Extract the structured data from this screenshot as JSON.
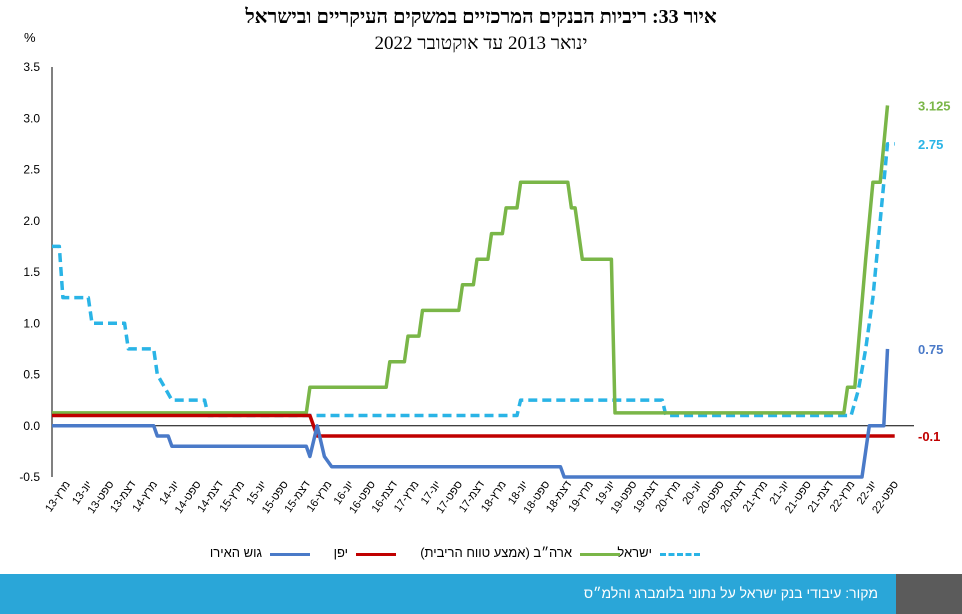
{
  "header": {
    "title": "איור 33: ריביות הבנקים המרכזיים במשקים העיקריים ובישראל",
    "subtitle": "ינואר 2013 עד אוקטובר 2022"
  },
  "footer": {
    "source": "מקור: עיבודי בנק ישראל על נתוני בלומברג והלמ״ס"
  },
  "chart_data": {
    "type": "line",
    "unit_label": "%",
    "ylim": [
      -0.5,
      3.5
    ],
    "yticks": [
      "3.5",
      "3.0",
      "2.5",
      "2.0",
      "1.5",
      "1.0",
      "0.5",
      "0.0",
      "-0.5"
    ],
    "x_range": [
      0,
      117
    ],
    "x_ticks": [
      {
        "label": "מרץ-13",
        "m": 2
      },
      {
        "label": "יונ-13",
        "m": 5
      },
      {
        "label": "ספט-13",
        "m": 8
      },
      {
        "label": "דצמ-13",
        "m": 11
      },
      {
        "label": "מרץ-14",
        "m": 14
      },
      {
        "label": "יונ-14",
        "m": 17
      },
      {
        "label": "ספט-14",
        "m": 20
      },
      {
        "label": "דצמ-14",
        "m": 23
      },
      {
        "label": "מרץ-15",
        "m": 26
      },
      {
        "label": "יונ-15",
        "m": 29
      },
      {
        "label": "ספט-15",
        "m": 32
      },
      {
        "label": "דצמ-15",
        "m": 35
      },
      {
        "label": "מרץ-16",
        "m": 38
      },
      {
        "label": "יונ-16",
        "m": 41
      },
      {
        "label": "ספט-16",
        "m": 44
      },
      {
        "label": "דצמ-16",
        "m": 47
      },
      {
        "label": "מרץ-17",
        "m": 50
      },
      {
        "label": "יונ-17",
        "m": 53
      },
      {
        "label": "ספט-17",
        "m": 56
      },
      {
        "label": "דצמ-17",
        "m": 59
      },
      {
        "label": "מרץ-18",
        "m": 62
      },
      {
        "label": "יונ-18",
        "m": 65
      },
      {
        "label": "ספט-18",
        "m": 68
      },
      {
        "label": "דצמ-18",
        "m": 71
      },
      {
        "label": "מרץ-19",
        "m": 74
      },
      {
        "label": "יונ-19",
        "m": 77
      },
      {
        "label": "ספט-19",
        "m": 80
      },
      {
        "label": "דצמ-19",
        "m": 83
      },
      {
        "label": "מרץ-20",
        "m": 86
      },
      {
        "label": "יונ-20",
        "m": 89
      },
      {
        "label": "ספט-20",
        "m": 92
      },
      {
        "label": "דצמ-20",
        "m": 95
      },
      {
        "label": "מרץ-21",
        "m": 98
      },
      {
        "label": "יונ-21",
        "m": 101
      },
      {
        "label": "ספט-21",
        "m": 104
      },
      {
        "label": "דצמ-21",
        "m": 107
      },
      {
        "label": "מרץ-22",
        "m": 110
      },
      {
        "label": "יונ-22",
        "m": 113
      },
      {
        "label": "ספט-22",
        "m": 116
      }
    ],
    "series": [
      {
        "name": "ישראל",
        "color": "#2ab4e6",
        "dash": true,
        "end_label": "2.75",
        "points": [
          [
            0,
            1.75
          ],
          [
            1,
            1.75
          ],
          [
            1.5,
            1.25
          ],
          [
            4,
            1.25
          ],
          [
            5,
            1.25
          ],
          [
            5.5,
            1.0
          ],
          [
            10,
            1.0
          ],
          [
            10.5,
            0.75
          ],
          [
            14,
            0.75
          ],
          [
            14.5,
            0.5
          ],
          [
            16.5,
            0.25
          ],
          [
            21,
            0.25
          ],
          [
            21.5,
            0.1
          ],
          [
            64,
            0.1
          ],
          [
            64.5,
            0.25
          ],
          [
            84,
            0.25
          ],
          [
            84.5,
            0.1
          ],
          [
            110,
            0.1
          ],
          [
            111,
            0.35
          ],
          [
            112,
            0.75
          ],
          [
            113,
            1.25
          ],
          [
            114,
            2.0
          ],
          [
            115,
            2.75
          ],
          [
            116,
            2.75
          ]
        ]
      },
      {
        "name": "ארה״ב (אמצע טווח הריבית)",
        "color": "#7ab648",
        "dash": false,
        "end_label": "3.125",
        "points": [
          [
            0,
            0.125
          ],
          [
            35,
            0.125
          ],
          [
            35.5,
            0.375
          ],
          [
            46,
            0.375
          ],
          [
            46.5,
            0.625
          ],
          [
            48.5,
            0.625
          ],
          [
            49,
            0.875
          ],
          [
            50.5,
            0.875
          ],
          [
            51,
            1.125
          ],
          [
            56,
            1.125
          ],
          [
            56.5,
            1.375
          ],
          [
            58,
            1.375
          ],
          [
            58.5,
            1.625
          ],
          [
            60,
            1.625
          ],
          [
            60.5,
            1.875
          ],
          [
            62,
            1.875
          ],
          [
            62.5,
            2.125
          ],
          [
            64,
            2.125
          ],
          [
            64.5,
            2.375
          ],
          [
            71,
            2.375
          ],
          [
            71.5,
            2.125
          ],
          [
            72,
            2.125
          ],
          [
            73,
            1.625
          ],
          [
            77,
            1.625
          ],
          [
            77.5,
            0.125
          ],
          [
            109,
            0.125
          ],
          [
            109.5,
            0.375
          ],
          [
            110.5,
            0.375
          ],
          [
            112,
            1.625
          ],
          [
            113,
            2.375
          ],
          [
            114,
            2.375
          ],
          [
            115,
            3.125
          ]
        ]
      },
      {
        "name": "יפן",
        "color": "#c00000",
        "dash": false,
        "end_label": "-0.1",
        "points": [
          [
            0,
            0.1
          ],
          [
            35.5,
            0.1
          ],
          [
            36.5,
            -0.1
          ],
          [
            116,
            -0.1
          ]
        ]
      },
      {
        "name": "גוש האירו",
        "color": "#4a7ac8",
        "dash": false,
        "end_label": "0.75",
        "points": [
          [
            0,
            0.0
          ],
          [
            14,
            0.0
          ],
          [
            14.5,
            -0.1
          ],
          [
            16,
            -0.1
          ],
          [
            16.5,
            -0.2
          ],
          [
            35,
            -0.2
          ],
          [
            35.5,
            -0.3
          ],
          [
            36.5,
            0.0
          ],
          [
            37.5,
            -0.3
          ],
          [
            38.5,
            -0.4
          ],
          [
            70,
            -0.4
          ],
          [
            70.5,
            -0.5
          ],
          [
            111.5,
            -0.5
          ],
          [
            112.5,
            0.0
          ],
          [
            114.5,
            0.0
          ],
          [
            115,
            0.75
          ]
        ]
      }
    ],
    "legend_position": "bottom",
    "grid": false
  }
}
